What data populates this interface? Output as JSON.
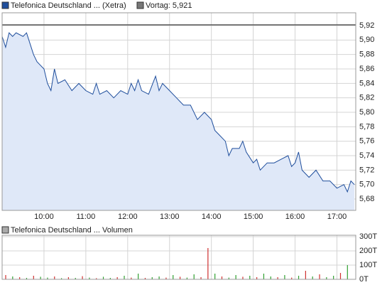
{
  "chart_data": [
    {
      "type": "line",
      "series": [
        {
          "name": "Telefonica Deutschland ... (Xetra)",
          "color": "#1f4e9c",
          "values": [
            5.905,
            5.89,
            5.91,
            5.905,
            5.91,
            5.905,
            5.91,
            5.895,
            5.88,
            5.87,
            5.865,
            5.86,
            5.84,
            5.83,
            5.86,
            5.84,
            5.845,
            5.83,
            5.84,
            5.83,
            5.825,
            5.84,
            5.825,
            5.83,
            5.82,
            5.83,
            5.825,
            5.84,
            5.83,
            5.845,
            5.83,
            5.825,
            5.85,
            5.83,
            5.84,
            5.83,
            5.82,
            5.81,
            5.81,
            5.79,
            5.8,
            5.79,
            5.775,
            5.77,
            5.76,
            5.74,
            5.75,
            5.75,
            5.76,
            5.745,
            5.73,
            5.735,
            5.72,
            5.73,
            5.73,
            5.735,
            5.74,
            5.725,
            5.73,
            5.745,
            5.72,
            5.71,
            5.72,
            5.705,
            5.705,
            5.695,
            5.7,
            5.69,
            5.705,
            5.7
          ]
        }
      ],
      "x": [
        540,
        545,
        550,
        555,
        560,
        570,
        575,
        580,
        585,
        590,
        595,
        600,
        605,
        610,
        615,
        620,
        630,
        640,
        650,
        660,
        670,
        675,
        680,
        690,
        700,
        710,
        720,
        725,
        730,
        735,
        740,
        750,
        760,
        765,
        770,
        780,
        790,
        800,
        810,
        820,
        830,
        840,
        845,
        850,
        860,
        865,
        870,
        880,
        885,
        890,
        900,
        905,
        910,
        920,
        930,
        940,
        950,
        955,
        960,
        965,
        970,
        980,
        990,
        1000,
        1010,
        1020,
        1030,
        1035,
        1040,
        1045
      ],
      "area_color": "#dfe8f8",
      "reference": {
        "value": 5.921,
        "label": "Vortag: 5,921",
        "color": "#555555"
      },
      "xlim": [
        540,
        1047
      ],
      "xticks": [
        {
          "value": 600,
          "label": "10:00"
        },
        {
          "value": 660,
          "label": "11:00"
        },
        {
          "value": 720,
          "label": "12:00"
        },
        {
          "value": 780,
          "label": "13:00"
        },
        {
          "value": 840,
          "label": "14:00"
        },
        {
          "value": 900,
          "label": "15:00"
        },
        {
          "value": 960,
          "label": "16:00"
        },
        {
          "value": 1020,
          "label": "17:00"
        }
      ],
      "ylim": [
        5.6643,
        5.9377
      ],
      "yticks": [
        {
          "value": 5.68,
          "label": "5,68"
        },
        {
          "value": 5.7,
          "label": "5,70"
        },
        {
          "value": 5.72,
          "label": "5,72"
        },
        {
          "value": 5.74,
          "label": "5,74"
        },
        {
          "value": 5.76,
          "label": "5,76"
        },
        {
          "value": 5.78,
          "label": "5,78"
        },
        {
          "value": 5.8,
          "label": "5,80"
        },
        {
          "value": 5.82,
          "label": "5,82"
        },
        {
          "value": 5.84,
          "label": "5,84"
        },
        {
          "value": 5.86,
          "label": "5,86"
        },
        {
          "value": 5.88,
          "label": "5,88"
        },
        {
          "value": 5.9,
          "label": "5,90"
        },
        {
          "value": 5.92,
          "label": "5,92"
        }
      ],
      "grid": true
    },
    {
      "type": "bar",
      "series": [
        {
          "name": "Telefonica Deutschland ... Volumen",
          "color": "#aaaaaa",
          "values": [
            30,
            20,
            15,
            10,
            25,
            18,
            12,
            20,
            8,
            15,
            10,
            22,
            12,
            8,
            18,
            10,
            15,
            25,
            12,
            40,
            10,
            15,
            20,
            12,
            30,
            18,
            12,
            35,
            15,
            220,
            40,
            20,
            12,
            30,
            18,
            25,
            15,
            40,
            20,
            15,
            30,
            12,
            25,
            60,
            20,
            35,
            15,
            25,
            45,
            100
          ],
          "colors": [
            "#d03030",
            "#30a030",
            "#d03030",
            "#30a030",
            "#d03030",
            "#30a030",
            "#30a030",
            "#d03030",
            "#30a030",
            "#d03030",
            "#30a030",
            "#d03030",
            "#30a030",
            "#d03030",
            "#30a030",
            "#30a030",
            "#d03030",
            "#30a030",
            "#d03030",
            "#30a030",
            "#d03030",
            "#30a030",
            "#30a030",
            "#d03030",
            "#30a030",
            "#d03030",
            "#30a030",
            "#30a030",
            "#d03030",
            "#d03030",
            "#30a030",
            "#d03030",
            "#30a030",
            "#30a030",
            "#d03030",
            "#30a030",
            "#d03030",
            "#30a030",
            "#30a030",
            "#d03030",
            "#30a030",
            "#d03030",
            "#30a030",
            "#d03030",
            "#30a030",
            "#d03030",
            "#30a030",
            "#30a030",
            "#d03030",
            "#30a030"
          ]
        }
      ],
      "x": [
        545,
        555,
        565,
        575,
        585,
        595,
        605,
        615,
        625,
        635,
        645,
        655,
        665,
        675,
        685,
        695,
        705,
        715,
        725,
        735,
        745,
        755,
        765,
        775,
        785,
        795,
        805,
        815,
        825,
        835,
        845,
        855,
        865,
        875,
        885,
        895,
        905,
        915,
        925,
        935,
        945,
        955,
        965,
        975,
        985,
        995,
        1005,
        1015,
        1025,
        1035
      ],
      "xlim": [
        540,
        1047
      ],
      "xticks": [
        600,
        660,
        720,
        780,
        840,
        900,
        960,
        1020
      ],
      "ylim": [
        0,
        310
      ],
      "yticks": [
        {
          "value": 0,
          "label": "0T"
        },
        {
          "value": 100,
          "label": "100T"
        },
        {
          "value": 200,
          "label": "200T"
        },
        {
          "value": 300,
          "label": "300T"
        }
      ],
      "grid": true
    }
  ]
}
